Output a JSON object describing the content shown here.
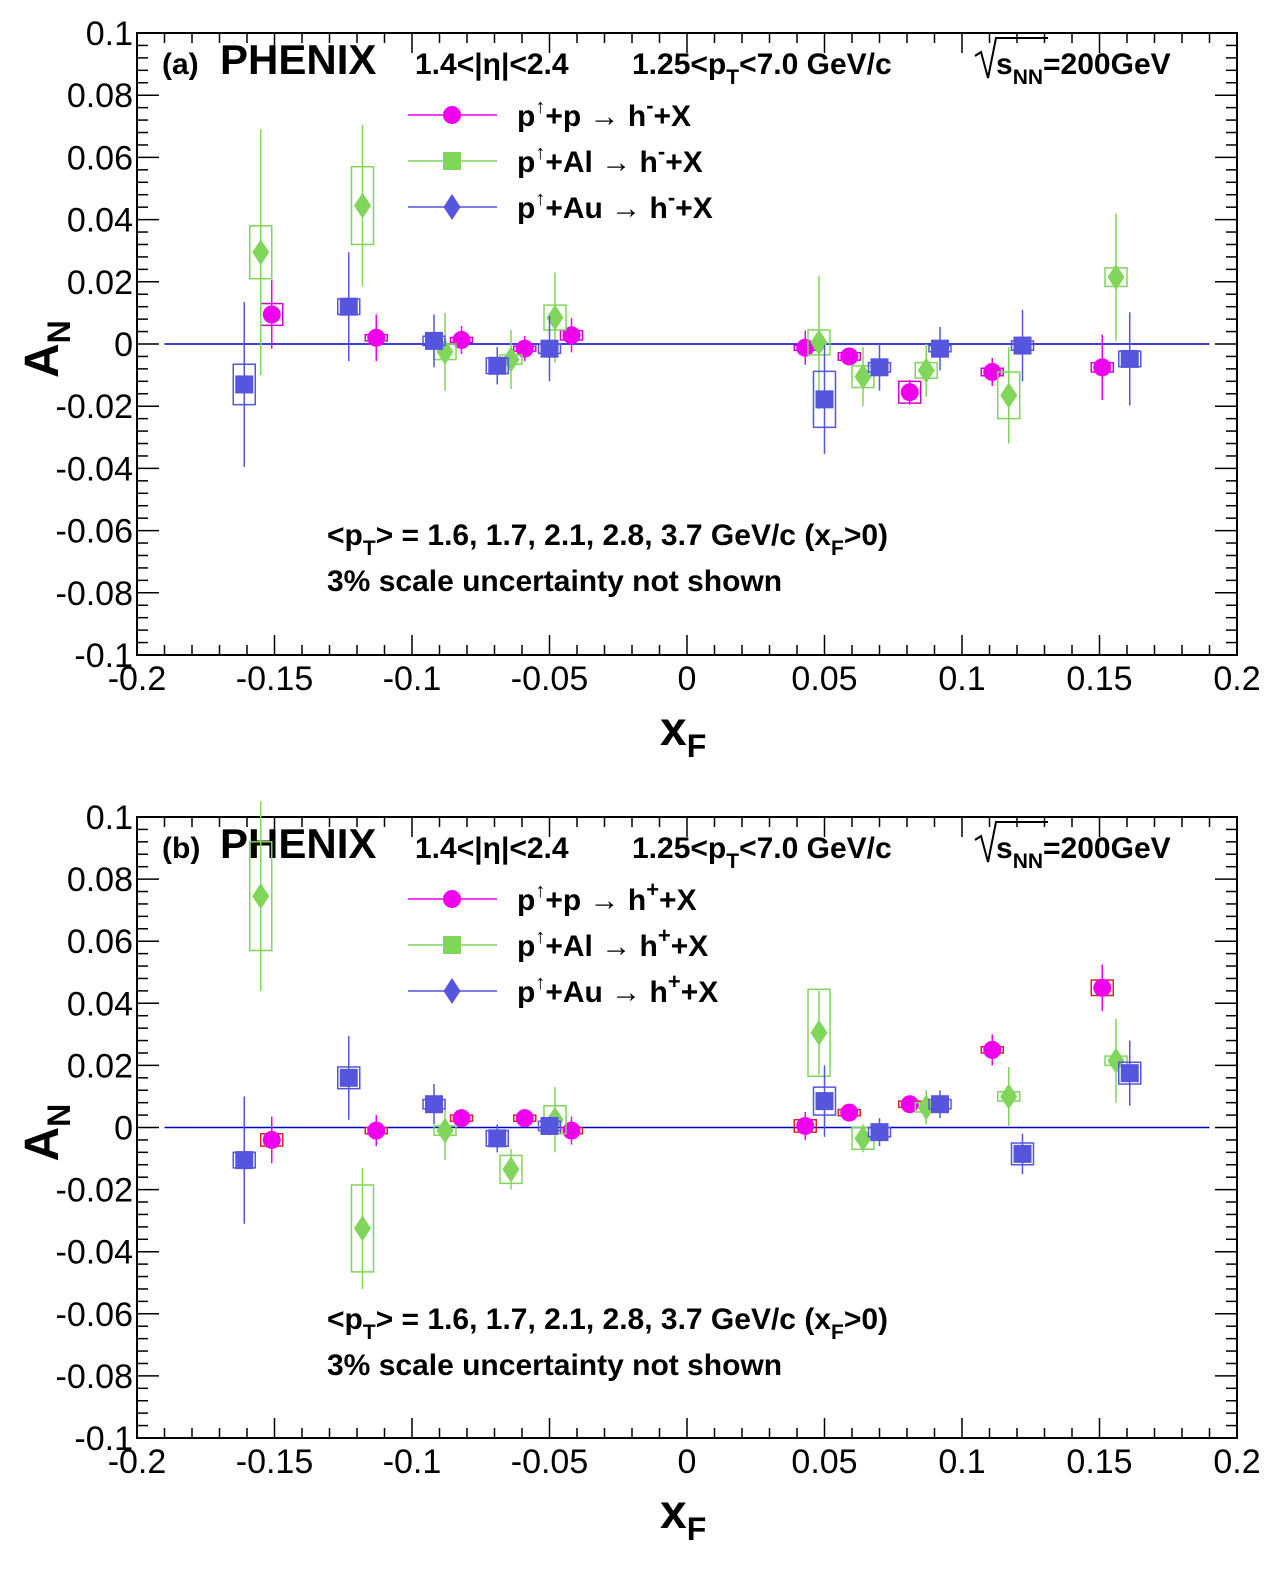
{
  "chart_data": [
    {
      "type": "scatter",
      "panel_label": "(a)",
      "experiment": "PHENIX",
      "eta_cut": "1.4<|η|<2.4",
      "pt_cut_pre": "1.25<p",
      "pt_cut_sub": "T",
      "pt_cut_post": "<7.0 GeV/c",
      "energy_sub": "NN",
      "energy_val": "=200GeV",
      "xlabel_main": "x",
      "xlabel_sub": "F",
      "ylabel_main": "A",
      "ylabel_sub": "N",
      "xlim": [
        -0.2,
        0.2
      ],
      "ylim": [
        -0.1,
        0.1
      ],
      "x_ticks": [
        "-0.2",
        "-0.15",
        "-0.1",
        "-0.05",
        "0",
        "0.05",
        "0.1",
        "0.15",
        "0.2"
      ],
      "y_ticks": [
        "-0.1",
        "-0.08",
        "-0.06",
        "-0.04",
        "-0.02",
        "0",
        "0.02",
        "0.04",
        "0.06",
        "0.08",
        "0.1"
      ],
      "note_line1": "<p_T> = 1.6, 1.7, 2.1, 2.8, 3.7 GeV/c (x_F>0)",
      "note_line2": "3% scale uncertainty not shown",
      "legend": [
        {
          "projectile": "p",
          "target": "+p",
          "product": "h",
          "charge": "-",
          "rest": "+X"
        },
        {
          "projectile": "p",
          "target": "+Al",
          "product": "h",
          "charge": "-",
          "rest": "+X"
        },
        {
          "projectile": "p",
          "target": "+Au",
          "product": "h",
          "charge": "-",
          "rest": "+X"
        }
      ],
      "series": [
        {
          "marker": "circle",
          "color": "#ee00ee",
          "sys_color": "#d400d4",
          "points": [
            {
              "x": -0.151,
              "y": 0.0095,
              "err": 0.011,
              "sys": 0.0035
            },
            {
              "x": -0.113,
              "y": 0.002,
              "err": 0.0075,
              "sys": 0.001
            },
            {
              "x": -0.082,
              "y": 0.0013,
              "err": 0.0045,
              "sys": 0.0008
            },
            {
              "x": -0.059,
              "y": -0.0015,
              "err": 0.004,
              "sys": 0.0008
            },
            {
              "x": -0.042,
              "y": 0.0028,
              "err": 0.0055,
              "sys": 0.0015
            },
            {
              "x": 0.043,
              "y": -0.0012,
              "err": 0.0055,
              "sys": 0.0008
            },
            {
              "x": 0.059,
              "y": -0.004,
              "err": 0.0025,
              "sys": 0.0012
            },
            {
              "x": 0.081,
              "y": -0.0155,
              "err": 0.004,
              "sys": 0.0035
            },
            {
              "x": 0.111,
              "y": -0.009,
              "err": 0.0045,
              "sys": 0.0012
            },
            {
              "x": 0.151,
              "y": -0.0075,
              "err": 0.0105,
              "sys": 0.0015
            }
          ]
        },
        {
          "marker": "diamond",
          "color": "#7fd65a",
          "sys_color": "#7fd65a",
          "points": [
            {
              "x": -0.155,
              "y": 0.0295,
              "err": 0.0395,
              "sys": 0.0085
            },
            {
              "x": -0.118,
              "y": 0.0445,
              "err": 0.026,
              "sys": 0.0125
            },
            {
              "x": -0.088,
              "y": -0.0025,
              "err": 0.0125,
              "sys": 0.0025
            },
            {
              "x": -0.064,
              "y": -0.005,
              "err": 0.0095,
              "sys": 0.0015
            },
            {
              "x": -0.048,
              "y": 0.0085,
              "err": 0.0145,
              "sys": 0.004
            },
            {
              "x": 0.048,
              "y": 0.0005,
              "err": 0.0215,
              "sys": 0.004
            },
            {
              "x": 0.064,
              "y": -0.0105,
              "err": 0.0095,
              "sys": 0.0035
            },
            {
              "x": 0.087,
              "y": -0.0085,
              "err": 0.0085,
              "sys": 0.0025
            },
            {
              "x": 0.117,
              "y": -0.0165,
              "err": 0.0155,
              "sys": 0.0075
            },
            {
              "x": 0.156,
              "y": 0.0215,
              "err": 0.0205,
              "sys": 0.003
            }
          ]
        },
        {
          "marker": "square",
          "color": "#5555dd",
          "sys_color": "#5555dd",
          "points": [
            {
              "x": -0.161,
              "y": -0.013,
              "err": 0.0265,
              "sys": 0.0065
            },
            {
              "x": -0.123,
              "y": 0.012,
              "err": 0.0175,
              "sys": 0.0025
            },
            {
              "x": -0.092,
              "y": 0.001,
              "err": 0.0085,
              "sys": 0.0015
            },
            {
              "x": -0.069,
              "y": -0.007,
              "err": 0.006,
              "sys": 0.0025
            },
            {
              "x": -0.05,
              "y": -0.0015,
              "err": 0.0105,
              "sys": 0.0015
            },
            {
              "x": 0.05,
              "y": -0.0178,
              "err": 0.0175,
              "sys": 0.009
            },
            {
              "x": 0.07,
              "y": -0.0075,
              "err": 0.0075,
              "sys": 0.0015
            },
            {
              "x": 0.092,
              "y": -0.0015,
              "err": 0.007,
              "sys": 0.001
            },
            {
              "x": 0.122,
              "y": -0.0005,
              "err": 0.0115,
              "sys": 0.0015
            },
            {
              "x": 0.161,
              "y": -0.0048,
              "err": 0.015,
              "sys": 0.0025
            }
          ]
        }
      ]
    },
    {
      "type": "scatter",
      "panel_label": "(b)",
      "experiment": "PHENIX",
      "eta_cut": "1.4<|η|<2.4",
      "pt_cut_pre": "1.25<p",
      "pt_cut_sub": "T",
      "pt_cut_post": "<7.0 GeV/c",
      "energy_sub": "NN",
      "energy_val": "=200GeV",
      "xlabel_main": "x",
      "xlabel_sub": "F",
      "ylabel_main": "A",
      "ylabel_sub": "N",
      "xlim": [
        -0.2,
        0.2
      ],
      "ylim": [
        -0.1,
        0.1
      ],
      "x_ticks": [
        "-0.2",
        "-0.15",
        "-0.1",
        "-0.05",
        "0",
        "0.05",
        "0.1",
        "0.15",
        "0.2"
      ],
      "y_ticks": [
        "-0.1",
        "-0.08",
        "-0.06",
        "-0.04",
        "-0.02",
        "0",
        "0.02",
        "0.04",
        "0.06",
        "0.08",
        "0.1"
      ],
      "note_line1": "<p_T> = 1.6, 1.7, 2.1, 2.8, 3.7 GeV/c (x_F>0)",
      "note_line2": "3% scale uncertainty not shown",
      "legend": [
        {
          "projectile": "p",
          "target": "+p",
          "product": "h",
          "charge": "+",
          "rest": "+X"
        },
        {
          "projectile": "p",
          "target": "+Al",
          "product": "h",
          "charge": "+",
          "rest": "+X"
        },
        {
          "projectile": "p",
          "target": "+Au",
          "product": "h",
          "charge": "+",
          "rest": "+X"
        }
      ],
      "series": [
        {
          "marker": "circle",
          "color": "#ee00ee",
          "sys_color": "#dd2222",
          "points": [
            {
              "x": -0.151,
              "y": -0.004,
              "err": 0.0075,
              "sys": 0.002
            },
            {
              "x": -0.113,
              "y": -0.001,
              "err": 0.005,
              "sys": 0.001
            },
            {
              "x": -0.082,
              "y": 0.003,
              "err": 0.0015,
              "sys": 0.001
            },
            {
              "x": -0.059,
              "y": 0.003,
              "err": 0.0015,
              "sys": 0.001
            },
            {
              "x": -0.042,
              "y": -0.001,
              "err": 0.0045,
              "sys": 0.001
            },
            {
              "x": 0.043,
              "y": 0.0005,
              "err": 0.0045,
              "sys": 0.002
            },
            {
              "x": 0.059,
              "y": 0.0048,
              "err": 0.0015,
              "sys": 0.001
            },
            {
              "x": 0.081,
              "y": 0.0075,
              "err": 0.0015,
              "sys": 0.001
            },
            {
              "x": 0.111,
              "y": 0.025,
              "err": 0.005,
              "sys": 0.001
            },
            {
              "x": 0.151,
              "y": 0.045,
              "err": 0.0075,
              "sys": 0.0025
            }
          ]
        },
        {
          "marker": "diamond",
          "color": "#7fd65a",
          "sys_color": "#7fd65a",
          "points": [
            {
              "x": -0.155,
              "y": 0.0745,
              "err": 0.0305,
              "sys": 0.0175
            },
            {
              "x": -0.118,
              "y": -0.0325,
              "err": 0.0195,
              "sys": 0.014
            },
            {
              "x": -0.088,
              "y": -0.001,
              "err": 0.0095,
              "sys": 0.0015
            },
            {
              "x": -0.064,
              "y": -0.0135,
              "err": 0.0065,
              "sys": 0.0045
            },
            {
              "x": -0.048,
              "y": 0.0025,
              "err": 0.0105,
              "sys": 0.0045
            },
            {
              "x": 0.048,
              "y": 0.0305,
              "err": 0.0135,
              "sys": 0.014
            },
            {
              "x": 0.064,
              "y": -0.0035,
              "err": 0.0045,
              "sys": 0.0035
            },
            {
              "x": 0.087,
              "y": 0.0065,
              "err": 0.0055,
              "sys": 0.0015
            },
            {
              "x": 0.117,
              "y": 0.01,
              "err": 0.0095,
              "sys": 0.0015
            },
            {
              "x": 0.156,
              "y": 0.0215,
              "err": 0.0135,
              "sys": 0.0015
            }
          ]
        },
        {
          "marker": "square",
          "color": "#5555dd",
          "sys_color": "#5555dd",
          "points": [
            {
              "x": -0.161,
              "y": -0.0105,
              "err": 0.0205,
              "sys": 0.0025
            },
            {
              "x": -0.123,
              "y": 0.016,
              "err": 0.0135,
              "sys": 0.0035
            },
            {
              "x": -0.092,
              "y": 0.0075,
              "err": 0.0065,
              "sys": 0.0015
            },
            {
              "x": -0.069,
              "y": -0.0035,
              "err": 0.0045,
              "sys": 0.0025
            },
            {
              "x": -0.05,
              "y": 0.0005,
              "err": 0.003,
              "sys": 0.0015
            },
            {
              "x": 0.05,
              "y": 0.0085,
              "err": 0.0115,
              "sys": 0.0045
            },
            {
              "x": 0.07,
              "y": -0.0015,
              "err": 0.0045,
              "sys": 0.0015
            },
            {
              "x": 0.092,
              "y": 0.0075,
              "err": 0.0045,
              "sys": 0.0015
            },
            {
              "x": 0.122,
              "y": -0.0085,
              "err": 0.0065,
              "sys": 0.0035
            },
            {
              "x": 0.161,
              "y": 0.0175,
              "err": 0.0105,
              "sys": 0.0035
            }
          ]
        }
      ]
    }
  ]
}
